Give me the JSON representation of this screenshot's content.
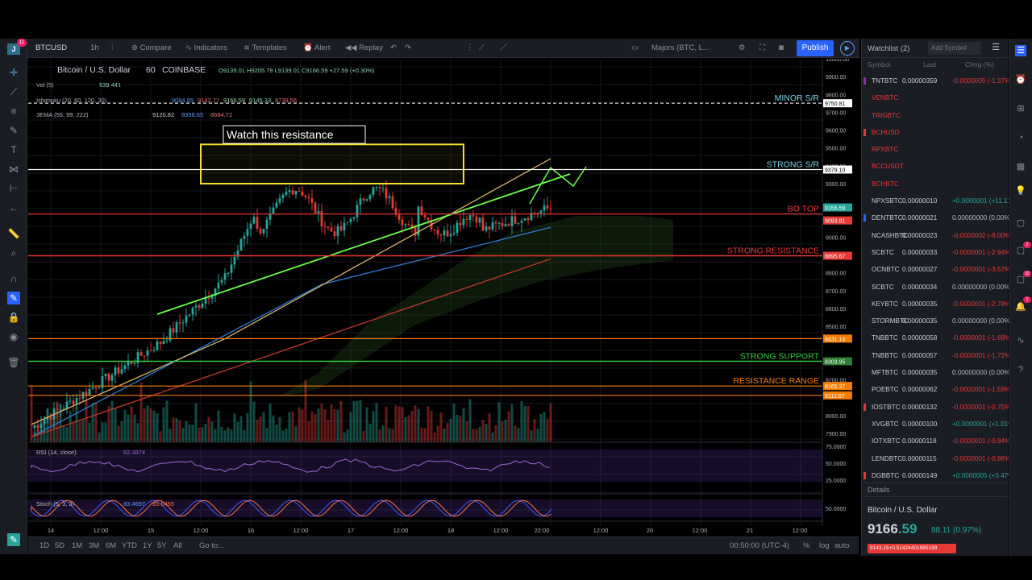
{
  "app": {
    "icon_letter": "J",
    "notif_count": "11"
  },
  "toolbar": {
    "symbol": "BTCUSD",
    "interval": "1h",
    "compare": "Compare",
    "indicators": "Indicators",
    "templates": "Templates",
    "alert": "Alert",
    "replay": "Replay",
    "layout_name": "Majors (BTC, L...",
    "publish": "Publish"
  },
  "chart_header": {
    "title": "Bitcoin / U.S. Dollar",
    "interval": "60",
    "exchange": "COINBASE",
    "ohlc": "O9139.01  H9205.79  L9139.01  C9166.59  +27.59 (+0.30%)",
    "vol_label": "Vol (5)",
    "vol_values": "539  441",
    "ichimoku_label": "Ichimoku (20, 60, 120, 30)",
    "ichimoku_values": [
      "9084.85",
      "9142.77",
      "9166.59",
      "9145.33",
      "8739.56"
    ],
    "ema_label": "3EMA (55, 99, 222)",
    "ema_values": [
      "9120.82",
      "8998.65",
      "8684.72"
    ]
  },
  "annotations": {
    "watch_box": "Watch this resistance",
    "minor_sr": "MINOR S/R",
    "strong_sr": "STRONG S/R",
    "bo_top": "BO TOP",
    "strong_resistance": "STRONG RESISTANCE",
    "strong_support": "STRONG SUPPORT",
    "resistance_range": "RESISTANCE RANGE"
  },
  "price_axis": {
    "ticks": [
      "10000.00",
      "9900.00",
      "9800.00",
      "9700.00",
      "9600.00",
      "9500.00",
      "9400.00",
      "9300.00",
      "9100.00",
      "9000.00",
      "8800.00",
      "8700.00",
      "8600.00",
      "8500.00",
      "8300.00",
      "8200.00",
      "8000.00",
      "7900.00"
    ],
    "labels": [
      {
        "value": "9750.81",
        "color": "#ffffff"
      },
      {
        "value": "9379.10",
        "color": "#ffffff"
      },
      {
        "value": "9166.59",
        "color": "#26a69a"
      },
      {
        "value": "9093.81",
        "color": "#e53935"
      },
      {
        "value": "8895.67",
        "color": "#e53935"
      },
      {
        "value": "8431.14",
        "color": "#f57c00"
      },
      {
        "value": "8303.95",
        "color": "#2e7d32"
      },
      {
        "value": "8165.37",
        "color": "#f57c00"
      },
      {
        "value": "8112.87",
        "color": "#f57c00"
      }
    ]
  },
  "rsi": {
    "label": "RSI (14, close)",
    "value": "62.3874",
    "ticks": [
      "75.0000",
      "50.0000",
      "25.0000"
    ]
  },
  "stoch": {
    "label": "Stoch (5, 3, 3)",
    "k": "83.4697",
    "d": "85.6455",
    "ticks": [
      "50.0000"
    ]
  },
  "time_axis": [
    "14",
    "12:00",
    "15",
    "12:00",
    "16",
    "12:00",
    "17",
    "12:00",
    "18",
    "12:00",
    "22:00",
    "12:00",
    "20",
    "12:00",
    "21",
    "12:00"
  ],
  "bottom": {
    "ranges": [
      "1D",
      "5D",
      "1M",
      "3M",
      "6M",
      "YTD",
      "1Y",
      "5Y",
      "All"
    ],
    "goto": "Go to...",
    "clock": "00:50:00 (UTC-4)",
    "pct": "%",
    "log": "log",
    "auto": "auto"
  },
  "watchlist": {
    "title": "Watchlist (2)",
    "add_placeholder": "Add Symbol",
    "columns": [
      "Symbol",
      "Last",
      "Chng (%)"
    ],
    "rows": [
      {
        "symbol": "TNTBTC",
        "last": "0.00000359",
        "chg": "-0.0000005 (-1.37%)",
        "dir": "down",
        "flag": "#9c27b0",
        "highlight": false
      },
      {
        "symbol": "VENBTC",
        "last": "",
        "chg": "",
        "dir": "none",
        "flag": "",
        "highlight": true
      },
      {
        "symbol": "TRIGBTC",
        "last": "",
        "chg": "",
        "dir": "none",
        "flag": "",
        "highlight": true
      },
      {
        "symbol": "BCHUSD",
        "last": "",
        "chg": "",
        "dir": "none",
        "flag": "#e53935",
        "highlight": true
      },
      {
        "symbol": "RPXBTC",
        "last": "",
        "chg": "",
        "dir": "none",
        "flag": "",
        "highlight": true
      },
      {
        "symbol": "BCCUSDT",
        "last": "",
        "chg": "",
        "dir": "none",
        "flag": "",
        "highlight": true
      },
      {
        "symbol": "BCHBTC",
        "last": "",
        "chg": "",
        "dir": "none",
        "flag": "",
        "highlight": true
      },
      {
        "symbol": "NPXSBTC",
        "last": "0.00000010",
        "chg": "+0.0000001 (+11.11%)",
        "dir": "up",
        "flag": "",
        "highlight": false
      },
      {
        "symbol": "DENTBTC",
        "last": "0.00000021",
        "chg": "0.00000000 (0.00%)",
        "dir": "flat",
        "flag": "#2962ff",
        "highlight": false
      },
      {
        "symbol": "NCASHBTC",
        "last": "0.00000023",
        "chg": "-0.0000002 (-8.00%)",
        "dir": "down",
        "flag": "",
        "highlight": false
      },
      {
        "symbol": "SCBTC",
        "last": "0.00000033",
        "chg": "-0.0000001 (-2.94%)",
        "dir": "down",
        "flag": "",
        "highlight": false
      },
      {
        "symbol": "OCNBTC",
        "last": "0.00000027",
        "chg": "-0.0000001 (-3.57%)",
        "dir": "down",
        "flag": "",
        "highlight": false
      },
      {
        "symbol": "SCBTC",
        "last": "0.00000034",
        "chg": "0.00000000 (0.00%)",
        "dir": "flat",
        "flag": "",
        "highlight": false
      },
      {
        "symbol": "KEYBTC",
        "last": "0.00000035",
        "chg": "-0.0000001 (-2.78%)",
        "dir": "down",
        "flag": "",
        "highlight": false
      },
      {
        "symbol": "STORMBTC",
        "last": "0.00000035",
        "chg": "0.00000000 (0.00%)",
        "dir": "flat",
        "flag": "",
        "highlight": false
      },
      {
        "symbol": "TNBBTC",
        "last": "0.00000058",
        "chg": "-0.0000001 (-1.69%)",
        "dir": "down",
        "flag": "",
        "highlight": false
      },
      {
        "symbol": "TNBBTC",
        "last": "0.00000057",
        "chg": "-0.0000001 (-1.72%)",
        "dir": "down",
        "flag": "",
        "highlight": false
      },
      {
        "symbol": "MFTBTC",
        "last": "0.00000035",
        "chg": "0.00000000 (0.00%)",
        "dir": "flat",
        "flag": "",
        "highlight": false
      },
      {
        "symbol": "POEBTC",
        "last": "0.00000062",
        "chg": "-0.0000001 (-1.59%)",
        "dir": "down",
        "flag": "",
        "highlight": false
      },
      {
        "symbol": "IOSTBTC",
        "last": "0.00000132",
        "chg": "-0.0000001 (-0.75%)",
        "dir": "down",
        "flag": "#e53935",
        "highlight": false
      },
      {
        "symbol": "XVGBTC",
        "last": "0.00000100",
        "chg": "+0.0000001 (+1.01%)",
        "dir": "up",
        "flag": "",
        "highlight": false
      },
      {
        "symbol": "IOTXBTC",
        "last": "0.00000118",
        "chg": "-0.0000001 (-0.84%)",
        "dir": "down",
        "flag": "",
        "highlight": false
      },
      {
        "symbol": "LENDBTC",
        "last": "0.00000115",
        "chg": "-0.0000001 (-0.86%)",
        "dir": "down",
        "flag": "",
        "highlight": false
      },
      {
        "symbol": "DGBBTC",
        "last": "0.00000149",
        "chg": "+0.0000005 (+3.47%)",
        "dir": "up",
        "flag": "#e53935",
        "highlight": false
      }
    ]
  },
  "details": {
    "label": "Details",
    "name": "Bitcoin / U.S. Dollar",
    "price_main": "9166",
    "price_tail": ".59",
    "change": "88.11 (0.97%)",
    "bidask": "9143.15+0.51424401985199"
  },
  "colors": {
    "up": "#26a69a",
    "down": "#e53935",
    "accent": "#2962ff",
    "highlight_symbol": "#e53935"
  }
}
